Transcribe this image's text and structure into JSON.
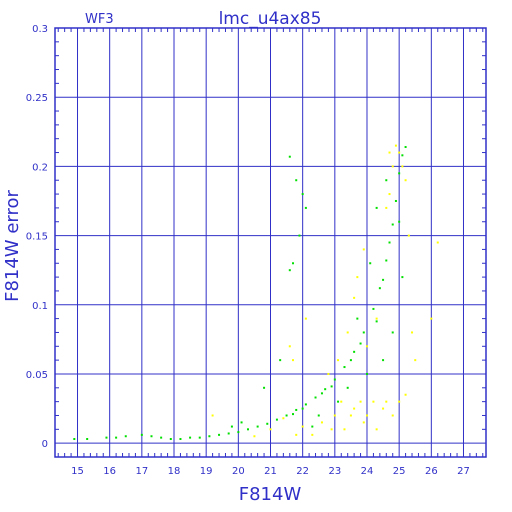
{
  "chart_data": {
    "type": "scatter",
    "title": "lmc_u4ax85",
    "subtitle": "WF3",
    "xlabel": "F814W",
    "ylabel": "F814W error",
    "xlim": [
      14.3,
      27.7
    ],
    "ylim": [
      -0.01,
      0.3
    ],
    "grid": true,
    "xticks": [
      "15",
      "16",
      "17",
      "18",
      "19",
      "20",
      "21",
      "22",
      "23",
      "24",
      "25",
      "26",
      "27"
    ],
    "yticks": [
      "0",
      "0.05",
      "0.1",
      "0.15",
      "0.2",
      "0.25",
      "0.3"
    ],
    "series": [
      {
        "color": "#00e000",
        "points": [
          [
            14.9,
            0.003
          ],
          [
            15.3,
            0.003
          ],
          [
            15.9,
            0.004
          ],
          [
            16.2,
            0.004
          ],
          [
            16.5,
            0.005
          ],
          [
            17.0,
            0.006
          ],
          [
            17.3,
            0.005
          ],
          [
            17.6,
            0.004
          ],
          [
            17.9,
            0.003
          ],
          [
            18.2,
            0.003
          ],
          [
            18.5,
            0.004
          ],
          [
            18.8,
            0.004
          ],
          [
            19.1,
            0.005
          ],
          [
            19.4,
            0.006
          ],
          [
            19.7,
            0.007
          ],
          [
            20.0,
            0.008
          ],
          [
            20.3,
            0.01
          ],
          [
            20.6,
            0.012
          ],
          [
            20.9,
            0.014
          ],
          [
            21.2,
            0.017
          ],
          [
            21.5,
            0.02
          ],
          [
            21.8,
            0.024
          ],
          [
            22.1,
            0.028
          ],
          [
            22.4,
            0.033
          ],
          [
            22.7,
            0.039
          ],
          [
            23.0,
            0.046
          ],
          [
            23.3,
            0.055
          ],
          [
            23.6,
            0.066
          ],
          [
            23.9,
            0.08
          ],
          [
            24.2,
            0.097
          ],
          [
            24.4,
            0.112
          ],
          [
            24.6,
            0.132
          ],
          [
            24.8,
            0.158
          ],
          [
            24.9,
            0.175
          ],
          [
            25.0,
            0.195
          ],
          [
            25.1,
            0.208
          ],
          [
            25.2,
            0.214
          ],
          [
            24.3,
            0.088
          ],
          [
            24.5,
            0.118
          ],
          [
            24.7,
            0.145
          ],
          [
            23.8,
            0.072
          ],
          [
            23.5,
            0.06
          ],
          [
            22.9,
            0.041
          ],
          [
            22.6,
            0.036
          ],
          [
            22.0,
            0.025
          ],
          [
            21.7,
            0.021
          ],
          [
            21.6,
            0.207
          ],
          [
            21.8,
            0.19
          ],
          [
            21.7,
            0.13
          ],
          [
            21.6,
            0.125
          ],
          [
            22.0,
            0.18
          ],
          [
            22.1,
            0.17
          ],
          [
            21.9,
            0.15
          ],
          [
            20.8,
            0.04
          ],
          [
            21.3,
            0.06
          ],
          [
            22.5,
            0.02
          ],
          [
            23.1,
            0.03
          ],
          [
            23.4,
            0.04
          ],
          [
            24.0,
            0.05
          ],
          [
            24.1,
            0.13
          ],
          [
            24.3,
            0.17
          ],
          [
            24.6,
            0.19
          ],
          [
            24.5,
            0.06
          ],
          [
            25.0,
            0.16
          ],
          [
            25.1,
            0.12
          ],
          [
            24.8,
            0.08
          ],
          [
            23.7,
            0.09
          ],
          [
            20.1,
            0.015
          ],
          [
            19.8,
            0.012
          ],
          [
            22.3,
            0.012
          ]
        ]
      },
      {
        "color": "#ffff00",
        "points": [
          [
            19.2,
            0.02
          ],
          [
            20.5,
            0.005
          ],
          [
            21.0,
            0.01
          ],
          [
            21.4,
            0.018
          ],
          [
            21.8,
            0.006
          ],
          [
            22.0,
            0.012
          ],
          [
            22.3,
            0.006
          ],
          [
            22.6,
            0.015
          ],
          [
            22.9,
            0.01
          ],
          [
            23.0,
            0.02
          ],
          [
            23.2,
            0.03
          ],
          [
            23.3,
            0.01
          ],
          [
            23.5,
            0.02
          ],
          [
            23.6,
            0.025
          ],
          [
            23.8,
            0.03
          ],
          [
            23.9,
            0.015
          ],
          [
            24.0,
            0.02
          ],
          [
            24.2,
            0.03
          ],
          [
            24.3,
            0.01
          ],
          [
            24.5,
            0.025
          ],
          [
            24.6,
            0.03
          ],
          [
            24.8,
            0.02
          ],
          [
            25.0,
            0.03
          ],
          [
            25.2,
            0.035
          ],
          [
            22.8,
            0.05
          ],
          [
            23.1,
            0.06
          ],
          [
            23.4,
            0.08
          ],
          [
            23.7,
            0.12
          ],
          [
            24.0,
            0.07
          ],
          [
            24.3,
            0.09
          ],
          [
            24.6,
            0.17
          ],
          [
            24.7,
            0.21
          ],
          [
            24.8,
            0.2
          ],
          [
            24.9,
            0.215
          ],
          [
            25.0,
            0.21
          ],
          [
            25.1,
            0.2
          ],
          [
            24.7,
            0.18
          ],
          [
            25.2,
            0.19
          ],
          [
            25.3,
            0.15
          ],
          [
            25.4,
            0.08
          ],
          [
            25.5,
            0.06
          ],
          [
            26.0,
            0.09
          ],
          [
            26.2,
            0.145
          ],
          [
            21.6,
            0.07
          ],
          [
            21.7,
            0.06
          ],
          [
            22.1,
            0.09
          ],
          [
            23.6,
            0.105
          ],
          [
            23.9,
            0.14
          ]
        ]
      }
    ]
  }
}
